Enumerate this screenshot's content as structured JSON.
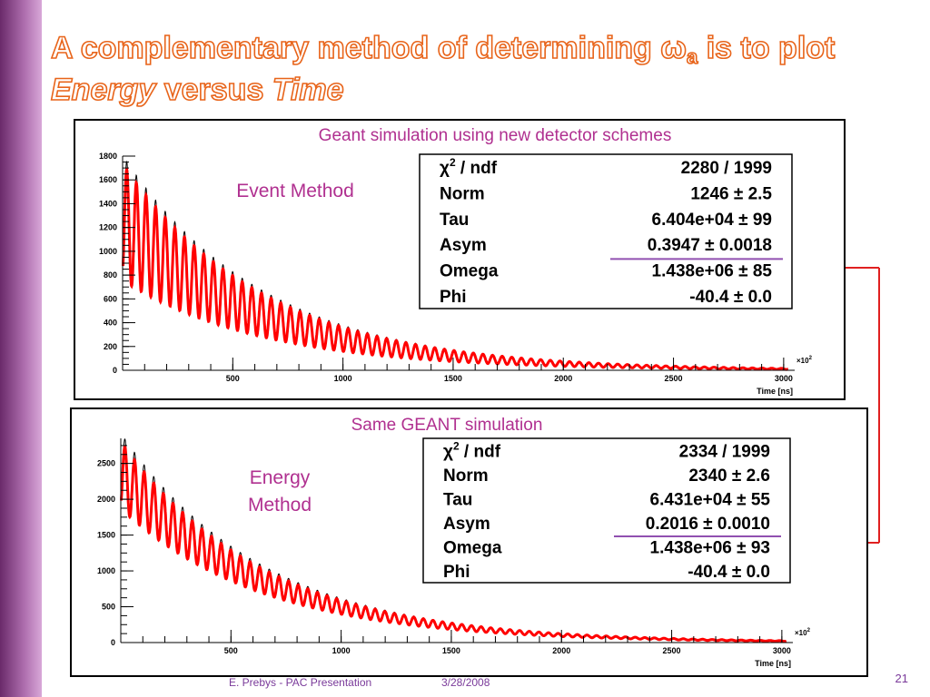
{
  "title": {
    "line1_prefix": "A complementary method of determining ",
    "omega": "ω",
    "sub": "a",
    "line1_suffix": " is to plot",
    "line2_italic1": "Energy",
    "line2_mid": " versus ",
    "line2_italic2": "Time"
  },
  "charts": [
    {
      "caption": "Geant simulation using new detector schemes",
      "label_lines": [
        "Event Method"
      ],
      "xlabel": "Time [ns]",
      "xmult": "×10",
      "xmult_exp": "2",
      "xlim": [
        0,
        3050
      ],
      "xticks": [
        500,
        1000,
        1500,
        2000,
        2500,
        3000
      ],
      "ylim": [
        0,
        1800
      ],
      "yticks": [
        0,
        200,
        400,
        600,
        800,
        1000,
        1200,
        1400,
        1600,
        1800
      ],
      "stats": [
        {
          "name": "χ",
          "sup": "2",
          "name_rest": " / ndf",
          "value": "2280 / 1999"
        },
        {
          "name": "Norm",
          "value": "1246 ± 2.5"
        },
        {
          "name": "Tau",
          "value": "6.404e+04 ± 99"
        },
        {
          "name": "Asym",
          "value": "0.3947 ± 0.0018"
        },
        {
          "name": "Omega",
          "value": "1.438e+06 ± 85"
        },
        {
          "name": "Phi",
          "value": "-40.4 ± 0.0"
        }
      ]
    },
    {
      "caption": "Same GEANT simulation",
      "label_lines": [
        "Energy",
        "Method"
      ],
      "xlabel": "Time [ns]",
      "xmult": "×10",
      "xmult_exp": "2",
      "xlim": [
        0,
        3050
      ],
      "xticks": [
        500,
        1000,
        1500,
        2000,
        2500,
        3000
      ],
      "ylim": [
        0,
        2850
      ],
      "yticks": [
        0,
        500,
        1000,
        1500,
        2000,
        2500
      ],
      "stats": [
        {
          "name": "χ",
          "sup": "2",
          "name_rest": " / ndf",
          "value": "2334 / 1999"
        },
        {
          "name": "Norm",
          "value": "2340 ± 2.6"
        },
        {
          "name": "Tau",
          "value": "6.431e+04 ± 55"
        },
        {
          "name": "Asym",
          "value": "0.2016 ± 0.0010"
        },
        {
          "name": "Omega",
          "value": "1.438e+06 ± 93"
        },
        {
          "name": "Phi",
          "value": "-40.4 ± 0.0"
        }
      ]
    }
  ],
  "footer": {
    "author": "E. Prebys - PAC Presentation",
    "date": "3/28/2008",
    "page": "21"
  }
}
